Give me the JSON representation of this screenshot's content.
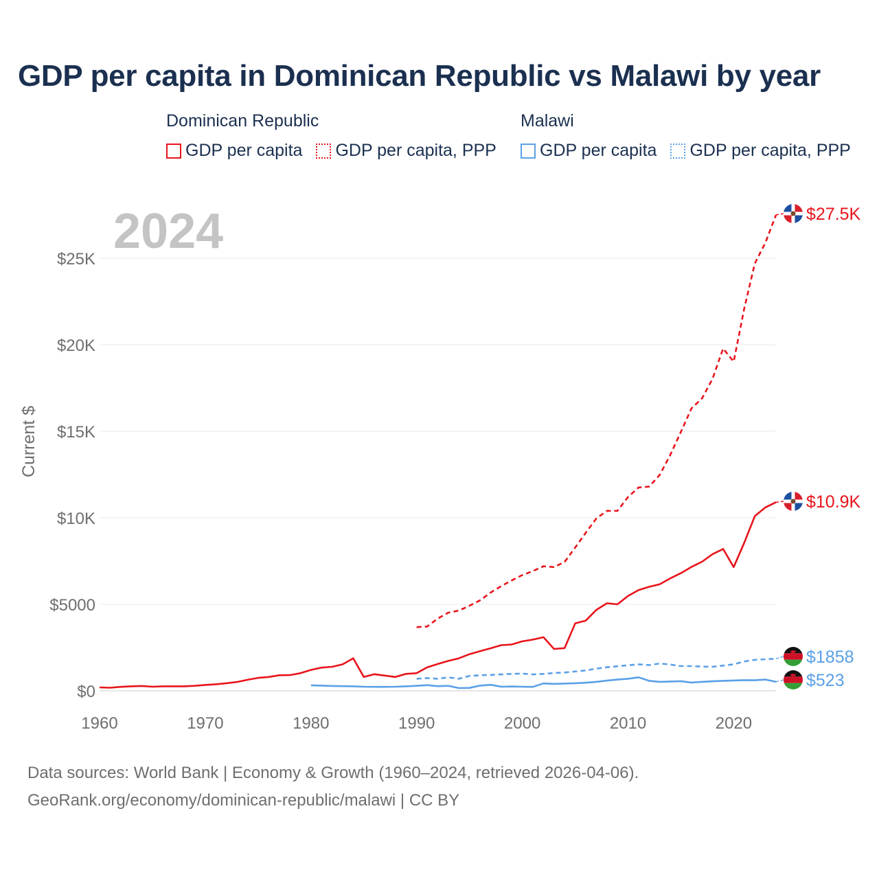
{
  "title": "GDP per capita in Dominican Republic vs Malawi by year",
  "year_watermark": "2024",
  "legend": {
    "groups": [
      {
        "country": "Dominican Republic",
        "color": "#e8141b",
        "items": [
          {
            "label": "GDP per capita",
            "style": "solid"
          },
          {
            "label": "GDP per capita, PPP",
            "style": "dotted"
          }
        ]
      },
      {
        "country": "Malawi",
        "color": "#5aa0e6",
        "items": [
          {
            "label": "GDP per capita",
            "style": "solid"
          },
          {
            "label": "GDP per capita, PPP",
            "style": "dotted"
          }
        ]
      }
    ]
  },
  "footer": {
    "line1": "Data sources: World Bank | Economy & Growth (1960–2024, retrieved 2026-04-06).",
    "line2": "GeoRank.org/economy/dominican-republic/malawi | CC BY"
  },
  "chart_data": {
    "type": "line",
    "title": "GDP per capita in Dominican Republic vs Malawi by year",
    "xlabel": "",
    "ylabel": "Current $",
    "xlim": [
      1960,
      2024
    ],
    "ylim": [
      0,
      27500
    ],
    "x_ticks": [
      1960,
      1970,
      1980,
      1990,
      2000,
      2010,
      2020
    ],
    "x_tick_labels": [
      "1960",
      "1970",
      "1980",
      "1990",
      "2000",
      "2010",
      "2020"
    ],
    "y_ticks": [
      0,
      5000,
      10000,
      15000,
      20000,
      25000
    ],
    "y_tick_labels": [
      "$0",
      "$5000",
      "$10K",
      "$15K",
      "$20K",
      "$25K"
    ],
    "grid": true,
    "series": [
      {
        "name": "Dominican Republic GDP per capita",
        "color": "#e8141b",
        "dash": "solid",
        "end_label": "$10.9K",
        "flag": "dominican-republic",
        "x": [
          1960,
          1961,
          1962,
          1963,
          1964,
          1965,
          1966,
          1967,
          1968,
          1969,
          1970,
          1971,
          1972,
          1973,
          1974,
          1975,
          1976,
          1977,
          1978,
          1979,
          1980,
          1981,
          1982,
          1983,
          1984,
          1985,
          1986,
          1987,
          1988,
          1989,
          1990,
          1991,
          1992,
          1993,
          1994,
          1995,
          1996,
          1997,
          1998,
          1999,
          2000,
          2001,
          2002,
          2003,
          2004,
          2005,
          2006,
          2007,
          2008,
          2009,
          2010,
          2011,
          2012,
          2013,
          2014,
          2015,
          2016,
          2017,
          2018,
          2019,
          2020,
          2021,
          2022,
          2023,
          2024
        ],
        "y": [
          200,
          180,
          230,
          260,
          280,
          240,
          260,
          260,
          260,
          290,
          340,
          380,
          440,
          510,
          640,
          750,
          800,
          900,
          910,
          1020,
          1210,
          1340,
          1390,
          1530,
          1880,
          800,
          960,
          880,
          800,
          980,
          1020,
          1360,
          1550,
          1730,
          1880,
          2120,
          2290,
          2460,
          2640,
          2680,
          2860,
          2960,
          3100,
          2420,
          2470,
          3900,
          4060,
          4680,
          5060,
          5000,
          5480,
          5820,
          6010,
          6160,
          6500,
          6800,
          7160,
          7460,
          7900,
          8200,
          7150,
          8560,
          10100,
          10600,
          10900
        ]
      },
      {
        "name": "Dominican Republic GDP per capita, PPP",
        "color": "#e8141b",
        "dash": "dashed",
        "end_label": "$27.5K",
        "flag": "dominican-republic",
        "x": [
          1990,
          1991,
          1992,
          1993,
          1994,
          1995,
          1996,
          1997,
          1998,
          1999,
          2000,
          2001,
          2002,
          2003,
          2004,
          2005,
          2006,
          2007,
          2008,
          2009,
          2010,
          2011,
          2012,
          2013,
          2014,
          2015,
          2016,
          2017,
          2018,
          2019,
          2020,
          2021,
          2022,
          2023,
          2024
        ],
        "y": [
          3680,
          3720,
          4180,
          4520,
          4640,
          4920,
          5230,
          5680,
          6050,
          6380,
          6690,
          6920,
          7200,
          7150,
          7450,
          8280,
          9140,
          9960,
          10400,
          10400,
          11200,
          11750,
          11800,
          12480,
          13640,
          14960,
          16320,
          16900,
          18040,
          19780,
          19020,
          22100,
          24700,
          25900,
          27500
        ]
      },
      {
        "name": "Malawi GDP per capita",
        "color": "#5aa0e6",
        "dash": "solid",
        "end_label": "$523",
        "flag": "malawi",
        "x": [
          1980,
          1981,
          1982,
          1983,
          1984,
          1985,
          1986,
          1987,
          1988,
          1989,
          1990,
          1991,
          1992,
          1993,
          1994,
          1995,
          1996,
          1997,
          1998,
          1999,
          2000,
          2001,
          2002,
          2003,
          2004,
          2005,
          2006,
          2007,
          2008,
          2009,
          2010,
          2011,
          2012,
          2013,
          2014,
          2015,
          2016,
          2017,
          2018,
          2019,
          2020,
          2021,
          2022,
          2023,
          2024
        ],
        "y": [
          320,
          300,
          280,
          270,
          260,
          240,
          230,
          230,
          240,
          260,
          290,
          330,
          270,
          290,
          160,
          170,
          300,
          350,
          240,
          250,
          240,
          230,
          430,
          400,
          420,
          440,
          470,
          520,
          590,
          650,
          700,
          780,
          580,
          520,
          540,
          560,
          480,
          520,
          550,
          580,
          600,
          620,
          610,
          650,
          523
        ]
      },
      {
        "name": "Malawi GDP per capita, PPP",
        "color": "#5aa0e6",
        "dash": "dashed",
        "end_label": "$1858",
        "flag": "malawi",
        "x": [
          1990,
          1991,
          1992,
          1993,
          1994,
          1995,
          1996,
          1997,
          1998,
          1999,
          2000,
          2001,
          2002,
          2003,
          2004,
          2005,
          2006,
          2007,
          2008,
          2009,
          2010,
          2011,
          2012,
          2013,
          2014,
          2015,
          2016,
          2017,
          2018,
          2019,
          2020,
          2021,
          2022,
          2023,
          2024
        ],
        "y": [
          700,
          740,
          700,
          780,
          700,
          860,
          900,
          920,
          950,
          980,
          1000,
          950,
          980,
          1030,
          1060,
          1120,
          1180,
          1280,
          1360,
          1420,
          1480,
          1530,
          1490,
          1580,
          1520,
          1430,
          1430,
          1400,
          1390,
          1460,
          1530,
          1700,
          1790,
          1830,
          1858
        ]
      }
    ]
  }
}
